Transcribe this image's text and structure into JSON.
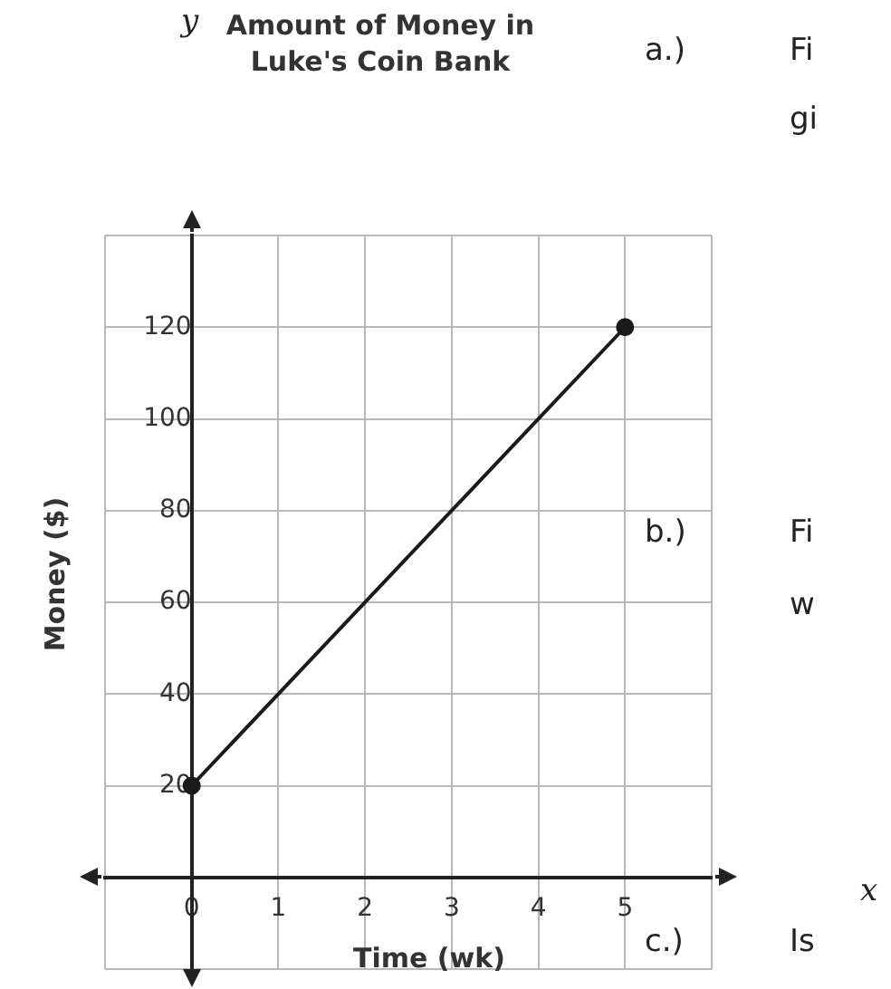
{
  "chart_data": {
    "type": "line",
    "title": "Amount of Money in Luke's Coin Bank",
    "xlabel": "Time (wk)",
    "ylabel": "Money ($)",
    "annotations": [
      "y",
      "x",
      "a.)",
      "Fi",
      "gi",
      "b.)",
      "Fi",
      "w",
      "c.)",
      "Is"
    ],
    "x": [
      0,
      5
    ],
    "series": [
      {
        "color": "#1a1a1a",
        "values": [
          20,
          120
        ]
      }
    ],
    "xlim": [
      -1,
      6
    ],
    "xticks": [
      {
        "value": -1,
        "label": null
      },
      0,
      1,
      2,
      3,
      4,
      5,
      {
        "value": 6,
        "label": null
      }
    ],
    "ylim": [
      -20,
      140
    ],
    "yticks": [
      {
        "value": -20,
        "label": null
      },
      {
        "value": 0,
        "label": null
      },
      20,
      40,
      60,
      80,
      100,
      120,
      {
        "value": 140,
        "label": null
      }
    ],
    "grid": true,
    "legend": false,
    "marker": "circle",
    "line_style": "solid"
  }
}
